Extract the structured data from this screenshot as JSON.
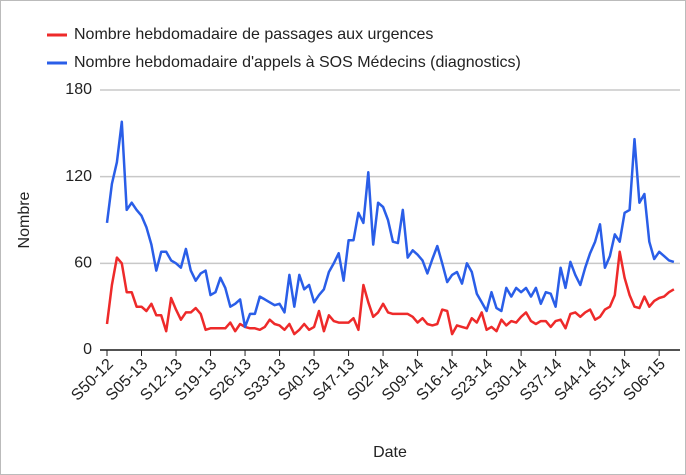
{
  "chart_data": {
    "type": "line",
    "xlabel": "Date",
    "ylabel": "Nombre",
    "categories": [
      "S50-12",
      null,
      null,
      null,
      null,
      null,
      null,
      "S05-13",
      null,
      null,
      null,
      null,
      null,
      null,
      "S12-13",
      null,
      null,
      null,
      null,
      null,
      null,
      "S19-13",
      null,
      null,
      null,
      null,
      null,
      null,
      "S26-13",
      null,
      null,
      null,
      null,
      null,
      null,
      "S33-13",
      null,
      null,
      null,
      null,
      null,
      null,
      "S40-13",
      null,
      null,
      null,
      null,
      null,
      null,
      "S47-13",
      null,
      null,
      null,
      null,
      null,
      null,
      "S02-14",
      null,
      null,
      null,
      null,
      null,
      null,
      "S09-14",
      null,
      null,
      null,
      null,
      null,
      null,
      "S16-14",
      null,
      null,
      null,
      null,
      null,
      null,
      "S23-14",
      null,
      null,
      null,
      null,
      null,
      null,
      "S30-14",
      null,
      null,
      null,
      null,
      null,
      null,
      "S37-14",
      null,
      null,
      null,
      null,
      null,
      null,
      "S44-14",
      null,
      null,
      null,
      null,
      null,
      null,
      "S51-14",
      null,
      null,
      null,
      null,
      null,
      null,
      "S06-15",
      null,
      null,
      null
    ],
    "series": [
      {
        "name": "Nombre hebdomadaire de passages aux urgences",
        "color": "#ee2a2a",
        "values": [
          18,
          45,
          64,
          60,
          40,
          40,
          30,
          30,
          27,
          32,
          24,
          24,
          13,
          36,
          28,
          21,
          26,
          26,
          29,
          25,
          14,
          15,
          15,
          15,
          15,
          19,
          13,
          18,
          16,
          15,
          15,
          14,
          16,
          21,
          18,
          17,
          14,
          18,
          11,
          14,
          18,
          14,
          16,
          27,
          13,
          24,
          20,
          19,
          19,
          19,
          22,
          14,
          45,
          33,
          23,
          26,
          32,
          26,
          25,
          25,
          25,
          25,
          23,
          19,
          22,
          18,
          17,
          18,
          28,
          27,
          11,
          17,
          16,
          15,
          22,
          19,
          26,
          14,
          16,
          13,
          21,
          17,
          20,
          19,
          23,
          26,
          20,
          18,
          20,
          20,
          16,
          20,
          21,
          15,
          25,
          26,
          23,
          26,
          28,
          21,
          23,
          28,
          30,
          38,
          68,
          50,
          38,
          30,
          29,
          37,
          30,
          34,
          36,
          37,
          40,
          42
        ]
      },
      {
        "name": "Nombre hebdomadaire d'appels à SOS Médecins (diagnostics)",
        "color": "#2a5ee8",
        "values": [
          88,
          115,
          130,
          158,
          97,
          102,
          97,
          93,
          85,
          73,
          55,
          68,
          68,
          62,
          60,
          57,
          70,
          55,
          48,
          53,
          55,
          38,
          40,
          50,
          43,
          30,
          32,
          35,
          16,
          25,
          25,
          37,
          35,
          33,
          31,
          32,
          26,
          52,
          30,
          52,
          42,
          45,
          33,
          38,
          42,
          54,
          60,
          67,
          48,
          76,
          76,
          95,
          88,
          123,
          73,
          102,
          99,
          90,
          75,
          74,
          97,
          64,
          69,
          66,
          62,
          53,
          63,
          72,
          60,
          47,
          52,
          54,
          46,
          60,
          54,
          39,
          33,
          27,
          40,
          29,
          27,
          43,
          37,
          43,
          40,
          43,
          37,
          43,
          32,
          40,
          39,
          30,
          57,
          43,
          61,
          52,
          45,
          57,
          67,
          75,
          87,
          57,
          65,
          80,
          75,
          95,
          97,
          146,
          102,
          108,
          75,
          63,
          68,
          65,
          62,
          61
        ]
      }
    ],
    "ylim": [
      0,
      180
    ],
    "yticks": [
      0,
      60,
      120,
      180
    ],
    "grid": true
  }
}
